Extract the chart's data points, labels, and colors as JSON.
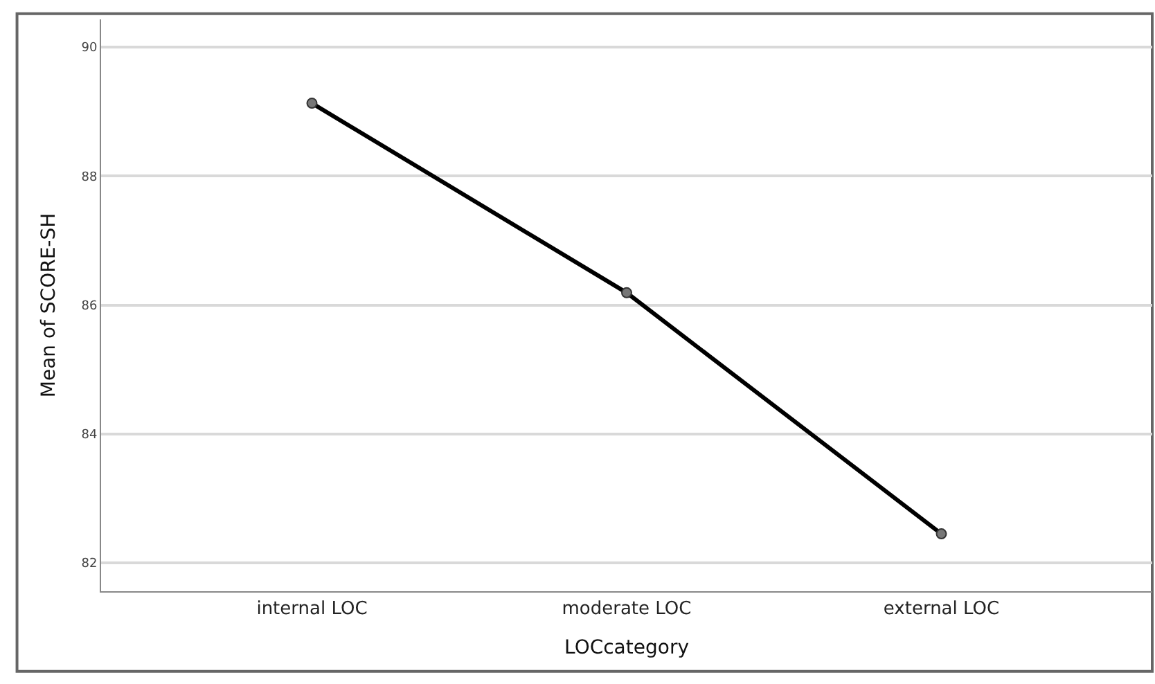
{
  "chart_data": {
    "type": "line",
    "xlabel": "LOCcategory",
    "ylabel": "Mean of SCORE-SH",
    "categories": [
      "internal LOC",
      "moderate LOC",
      "external LOC"
    ],
    "series": [
      {
        "color": "#000000",
        "values": [
          89.13,
          86.19,
          82.45
        ]
      }
    ],
    "ylim": [
      81.56,
      90.43
    ],
    "yticks": [
      82,
      84,
      86,
      88,
      90
    ],
    "grid": "y",
    "marker": "circle",
    "line_style": "solid",
    "legend": false
  }
}
